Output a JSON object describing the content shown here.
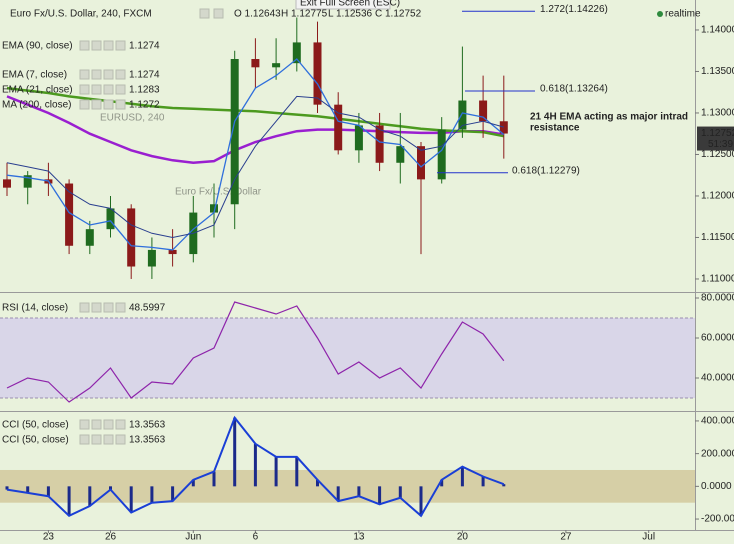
{
  "chart_data": [
    {
      "type": "candlestick",
      "title": "Euro Fx/U.S. Dollar, 240, FXCM",
      "ohlc": [
        "O 1.12643",
        "H 1.12775",
        "L 1.12536",
        "C 1.12752"
      ],
      "categories": [
        null,
        null,
        "23",
        null,
        null,
        "26",
        null,
        null,
        null,
        "Jun",
        null,
        null,
        "6",
        null,
        null,
        null,
        null,
        "13",
        null,
        null,
        null,
        null,
        "20",
        null,
        null,
        null,
        null,
        "27",
        null,
        null,
        null,
        "Jul"
      ],
      "open": [
        1.122,
        1.121,
        1.122,
        1.1215,
        1.114,
        1.116,
        1.1185,
        1.1115,
        1.1135,
        1.113,
        1.118,
        1.119,
        1.1365,
        1.1355,
        1.136,
        1.1385,
        1.131,
        1.1255,
        1.1285,
        1.124,
        1.126,
        1.122,
        1.128,
        1.1315,
        1.129,
        null,
        null,
        null,
        null,
        null,
        null,
        null
      ],
      "high": [
        1.124,
        1.123,
        1.124,
        1.122,
        1.117,
        1.12,
        1.119,
        1.115,
        1.116,
        1.12,
        1.1215,
        1.1375,
        1.139,
        1.139,
        1.1415,
        1.141,
        1.1325,
        1.13,
        1.13,
        1.13,
        1.1265,
        1.1295,
        1.138,
        1.1345,
        1.1345,
        null,
        null,
        null,
        null,
        null,
        null,
        null
      ],
      "low": [
        1.12,
        1.119,
        1.12,
        1.113,
        1.113,
        1.115,
        1.11,
        1.11,
        1.1115,
        1.112,
        1.115,
        1.116,
        1.133,
        1.134,
        1.135,
        1.13,
        1.125,
        1.124,
        1.123,
        1.1215,
        1.113,
        1.1215,
        1.127,
        1.127,
        1.1245,
        null,
        null,
        null,
        null,
        null,
        null,
        null
      ],
      "close": [
        1.121,
        1.1225,
        1.1215,
        1.114,
        1.116,
        1.1185,
        1.1115,
        1.1135,
        1.113,
        1.118,
        1.119,
        1.1365,
        1.1355,
        1.136,
        1.1385,
        1.131,
        1.1255,
        1.1285,
        1.124,
        1.126,
        1.122,
        1.128,
        1.1315,
        1.129,
        1.12752,
        null,
        null,
        null,
        null,
        null,
        null,
        null
      ],
      "up_color": "#1f6b1f",
      "down_color": "#8b1a1a",
      "series": [
        {
          "name": "EMA (90, close)",
          "legend_value": 1.1274,
          "color": "#9a1fd0",
          "width": 2.5,
          "values": [
            1.132,
            1.131,
            1.13,
            1.1288,
            1.1275,
            1.1265,
            1.1255,
            1.1248,
            1.1243,
            1.124,
            1.1242,
            1.1255,
            1.1265,
            1.1272,
            1.1278,
            1.128,
            1.128,
            1.1279,
            1.1278,
            1.1277,
            1.1276,
            1.1276,
            1.1278,
            1.1278,
            1.1274,
            null,
            null,
            null,
            null,
            null,
            null,
            null
          ]
        },
        {
          "name": "EMA (7, close)",
          "legend_value": 1.1274,
          "color": "#2f6fdc",
          "width": 1.3,
          "values": [
            1.1225,
            1.1222,
            1.1218,
            1.118,
            1.1165,
            1.117,
            1.114,
            1.1138,
            1.1135,
            1.116,
            1.118,
            1.129,
            1.133,
            1.1345,
            1.1365,
            1.1335,
            1.129,
            1.1285,
            1.1265,
            1.1262,
            1.1235,
            1.1255,
            1.13,
            1.1295,
            1.1274,
            null,
            null,
            null,
            null,
            null,
            null,
            null
          ]
        },
        {
          "name": "EMA (21, close)",
          "legend_value": 1.1283,
          "color": "#2a3f8f",
          "width": 1,
          "values": [
            1.124,
            1.1235,
            1.123,
            1.1205,
            1.119,
            1.1185,
            1.1165,
            1.1155,
            1.115,
            1.1155,
            1.1165,
            1.122,
            1.126,
            1.129,
            1.132,
            1.1318,
            1.13,
            1.1295,
            1.128,
            1.1272,
            1.1255,
            1.126,
            1.1285,
            1.129,
            1.1283,
            null,
            null,
            null,
            null,
            null,
            null,
            null
          ]
        },
        {
          "name": "MA (200, close)",
          "legend_value": 1.1272,
          "color": "#4c9a1f",
          "width": 2.5,
          "values": [
            1.133,
            1.1327,
            1.1324,
            1.132,
            1.1317,
            1.1314,
            1.1311,
            1.1308,
            1.1306,
            1.1305,
            1.1304,
            1.1303,
            1.1302,
            1.13,
            1.1298,
            1.1296,
            1.1293,
            1.129,
            1.1287,
            1.1284,
            1.1281,
            1.1279,
            1.1278,
            1.1277,
            1.1272,
            null,
            null,
            null,
            null,
            null,
            null,
            null
          ]
        }
      ],
      "ylim": [
        1.10843,
        1.14361
      ],
      "yticks": [
        {
          "value": 1.14,
          "label": "1.14000"
        },
        {
          "value": 1.135,
          "label": "1.13500"
        },
        {
          "value": 1.13,
          "label": "1.13000"
        },
        {
          "value": 1.125,
          "label": "1.12500"
        },
        {
          "value": 1.12,
          "label": "1.12000"
        },
        {
          "value": 1.115,
          "label": "1.11500"
        },
        {
          "value": 1.11,
          "label": "1.11000"
        }
      ],
      "last_price": 1.12752,
      "countdown": "51:39",
      "fib_levels": [
        {
          "label": "1.272(1.14226)",
          "value": 1.14226
        },
        {
          "label": "0.618(1.13264)",
          "value": 1.13264
        },
        {
          "label": "0.618(1.12279)",
          "value": 1.12279
        }
      ],
      "annotation": [
        "21 4H EMA acting as major intrad",
        "resistance"
      ],
      "watermark": [
        "EURUSD, 240",
        "Euro Fx/U.S. Dollar"
      ],
      "toolbar_tip": "Exit Full Screen (ESC)",
      "status": "realtime"
    },
    {
      "type": "line",
      "legend": [
        {
          "name": "RSI (14, close)",
          "value": 48.5997
        }
      ],
      "color": "#8e24aa",
      "values": [
        35,
        40,
        38,
        28,
        35,
        45,
        30,
        38,
        37,
        50,
        55,
        78,
        75,
        72,
        76,
        60,
        42,
        48,
        40,
        45,
        35,
        52,
        68,
        62,
        48.5997,
        null,
        null,
        null,
        null,
        null,
        null,
        null
      ],
      "band": [
        30,
        70
      ],
      "band_color": "#d9d6e8",
      "ylim": [
        24,
        82.5
      ],
      "yticks": [
        {
          "value": 80,
          "label": "80.0000"
        },
        {
          "value": 60,
          "label": "60.0000"
        },
        {
          "value": 40,
          "label": "40.0000"
        }
      ]
    },
    {
      "type": "histogram-line",
      "legend": [
        {
          "name": "CCI (50, close)",
          "value": 13.3563
        },
        {
          "name": "CCI (50, close)",
          "value": 13.3563
        }
      ],
      "color": "#1a3fd6",
      "values": [
        -20,
        -40,
        -60,
        -180,
        -120,
        -20,
        -160,
        -100,
        -90,
        40,
        90,
        420,
        260,
        180,
        180,
        40,
        -90,
        -60,
        -110,
        -70,
        -180,
        40,
        120,
        60,
        13.3563,
        null,
        null,
        null,
        null,
        null,
        null,
        null
      ],
      "band": [
        -100,
        100
      ],
      "band_color": "#d6cfa6",
      "ylim": [
        -267,
        448.5
      ],
      "yticks": [
        {
          "value": 400,
          "label": "400.0000"
        },
        {
          "value": 200,
          "label": "200.0000"
        },
        {
          "value": 0,
          "label": "0.0000"
        },
        {
          "value": -200,
          "label": "-200.0000"
        }
      ]
    }
  ]
}
